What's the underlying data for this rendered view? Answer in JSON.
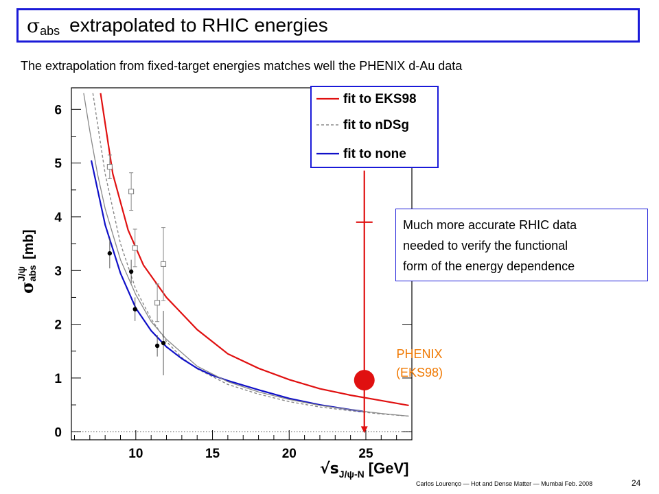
{
  "slide": {
    "title_symbol": "σ",
    "title_sub": "abs",
    "title_text": "extrapolated to RHIC energies",
    "subtitle": "The extrapolation from fixed-target energies matches well the PHENIX d-Au data",
    "note_lines": [
      "Much more accurate RHIC data",
      "needed to verify the functional",
      "form of the energy dependence"
    ],
    "phenix_label_lines": [
      "PHENIX",
      "(EKS98)"
    ],
    "footer": "Carlos Lourenço — Hot and Dense Matter — Mumbai Feb. 2008",
    "page_number": "24"
  },
  "colors": {
    "accent_blue": "#1a1ad8",
    "fit_eks98": "#e01010",
    "fit_ndsg": "#888888",
    "fit_none": "#1010c8",
    "phenix": "#e01010",
    "phenix_label": "#f07800"
  },
  "chart_data": {
    "type": "line",
    "ylabel_main": "σ",
    "ylabel_sup": "J/ψ",
    "ylabel_sub": "abs",
    "ylabel_unit": "[mb]",
    "xlabel_main": "√s",
    "xlabel_sub": "J/ψ-N",
    "xlabel_unit": "[GeV]",
    "xlim": [
      5.8,
      28
    ],
    "ylim": [
      -0.15,
      6.4
    ],
    "x_ticks": [
      10,
      15,
      20,
      25
    ],
    "y_ticks": [
      0,
      1,
      2,
      3,
      4,
      5,
      6
    ],
    "legend_position": "top-right",
    "legend": [
      {
        "label": "fit to EKS98",
        "style": "solid",
        "color": "#e01010"
      },
      {
        "label": "fit to nDSg",
        "style": "dashed",
        "color": "#888888"
      },
      {
        "label": "fit to none",
        "style": "solid",
        "color": "#1010c8"
      }
    ],
    "series": [
      {
        "name": "fit to EKS98",
        "style": "solid",
        "color": "#e01010",
        "x": [
          7.7,
          8.5,
          9.5,
          10.5,
          12,
          14,
          16,
          18,
          20,
          22,
          24,
          26,
          27.8
        ],
        "y": [
          6.3,
          4.8,
          3.75,
          3.1,
          2.5,
          1.9,
          1.45,
          1.18,
          0.97,
          0.8,
          0.68,
          0.58,
          0.49
        ]
      },
      {
        "name": "fit to nDSg",
        "style": "dashed",
        "color": "#888888",
        "x": [
          7.2,
          8,
          9,
          10,
          11,
          12,
          13,
          14,
          16,
          18,
          20,
          22,
          24,
          26,
          27.8
        ],
        "y": [
          6.3,
          4.8,
          3.5,
          2.65,
          2.1,
          1.68,
          1.38,
          1.17,
          0.88,
          0.7,
          0.56,
          0.46,
          0.39,
          0.33,
          0.29
        ]
      },
      {
        "name": "fit to none",
        "style": "solid",
        "color": "#1010c8",
        "x": [
          7.1,
          8,
          9,
          10,
          11,
          12,
          13,
          14,
          15,
          16,
          18,
          20,
          22,
          24,
          24.8
        ],
        "y": [
          5.05,
          3.85,
          2.95,
          2.3,
          1.88,
          1.58,
          1.36,
          1.18,
          1.05,
          0.95,
          0.78,
          0.62,
          0.5,
          0.41,
          0.38
        ]
      },
      {
        "name": "",
        "style": "solid",
        "color": "#888888",
        "x": [
          6.6,
          7,
          7.5,
          8,
          9,
          10,
          11,
          12,
          14,
          16,
          18,
          20,
          22,
          24,
          26,
          27.8
        ],
        "y": [
          6.3,
          5.6,
          4.8,
          4.15,
          3.2,
          2.55,
          2.05,
          1.72,
          1.22,
          0.93,
          0.74,
          0.6,
          0.49,
          0.41,
          0.34,
          0.29
        ]
      }
    ],
    "points_open": [
      {
        "x": 8.3,
        "y": 4.93,
        "err": 0.22
      },
      {
        "x": 9.7,
        "y": 4.47,
        "err": 0.35
      },
      {
        "x": 9.95,
        "y": 3.42,
        "err": 0.35
      },
      {
        "x": 11.8,
        "y": 3.12,
        "err": 0.68
      },
      {
        "x": 11.4,
        "y": 2.4,
        "err": 0.35
      }
    ],
    "points_filled": [
      {
        "x": 8.3,
        "y": 3.32,
        "err": 0.28
      },
      {
        "x": 9.7,
        "y": 2.98,
        "err": 0.22
      },
      {
        "x": 9.95,
        "y": 2.28,
        "err": 0.22
      },
      {
        "x": 11.4,
        "y": 1.6,
        "err": 0.2
      },
      {
        "x": 11.8,
        "y": 1.65,
        "err": 0.6
      }
    ],
    "phenix_point": {
      "x": 24.9,
      "y": 0.96,
      "err_high": 3.9,
      "err_low": 0
    }
  }
}
